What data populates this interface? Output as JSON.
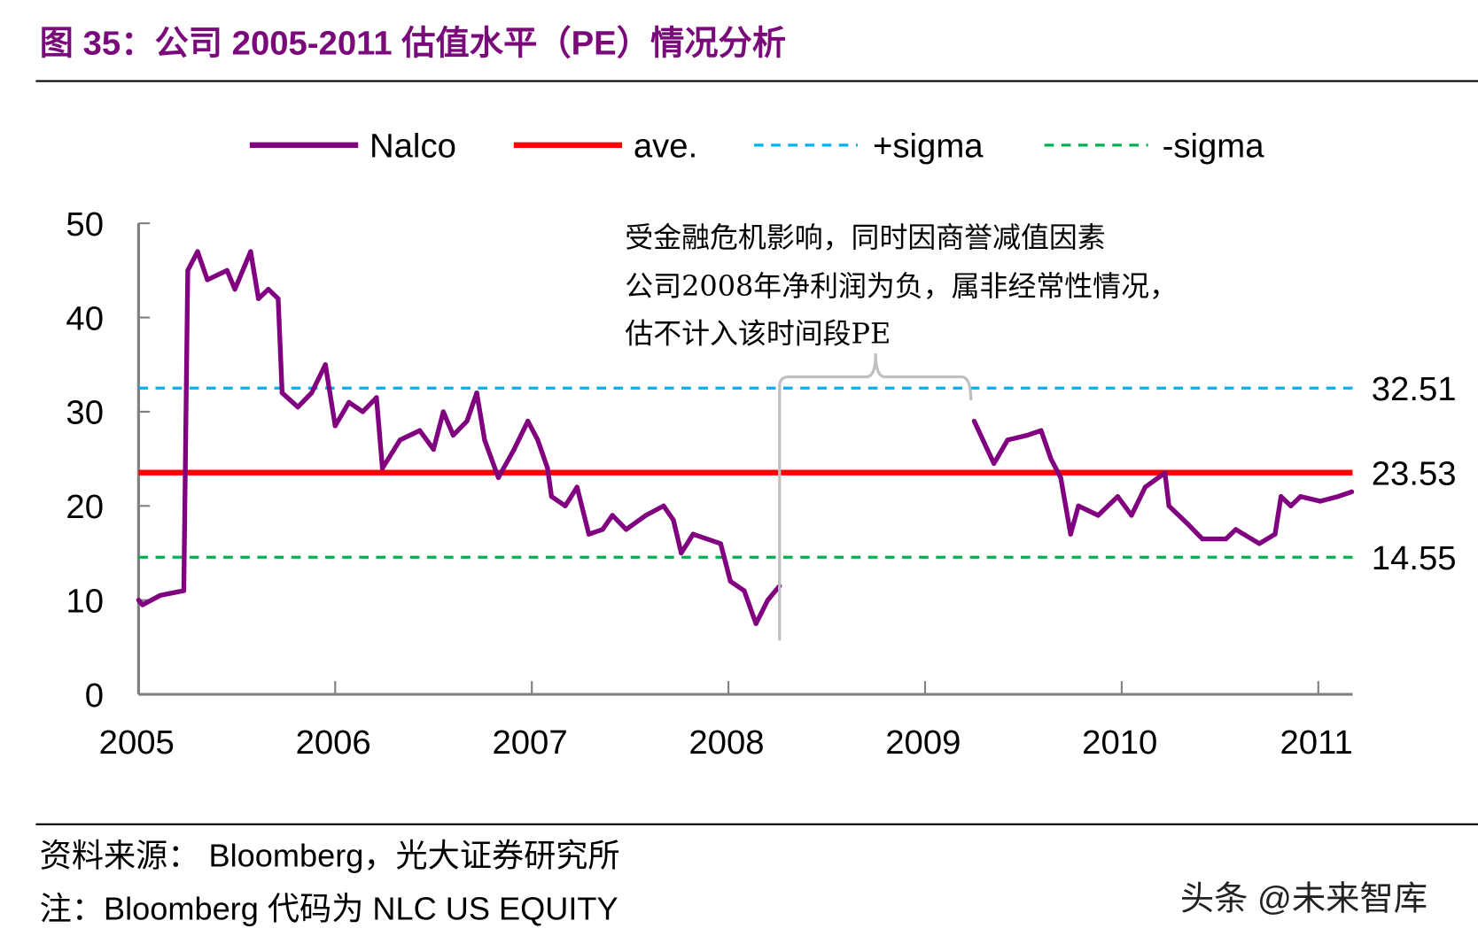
{
  "title": "图 35：公司 2005-2011 估值水平（PE）情况分析",
  "colors": {
    "title": "#7a0a7a",
    "nalco": "#800080",
    "ave": "#ff0000",
    "plus_sigma": "#00b0f0",
    "minus_sigma": "#00b050",
    "annotation": "#bfbfbf"
  },
  "annotation": [
    "受金融危机影响，同时因商誉减值因素",
    "公司2008年净利润为负，属非经常性情况，",
    "估不计入该时间段PE"
  ],
  "footer": {
    "source": "资料来源：  Bloomberg，光大证券研究所",
    "note": "注：Bloomberg 代码为 NLC US EQUITY",
    "watermark": "头条 @未来智库"
  },
  "chart_data": {
    "type": "line",
    "title": "",
    "xlabel": "",
    "ylabel": "",
    "xlim": [
      2005,
      2011.18
    ],
    "ylim": [
      0,
      50
    ],
    "x_ticks": [
      "2005",
      "2006",
      "2007",
      "2008",
      "2009",
      "2010",
      "2011"
    ],
    "y_ticks": [
      "0",
      "10",
      "20",
      "30",
      "40",
      "50"
    ],
    "grid": false,
    "legend": "top",
    "series": [
      {
        "name": "Nalco",
        "style": "solid",
        "segments": [
          [
            [
              2005.0,
              10
            ],
            [
              2005.02,
              9.5
            ],
            [
              2005.11,
              10.5
            ],
            [
              2005.23,
              11
            ],
            [
              2005.25,
              45
            ],
            [
              2005.3,
              47
            ],
            [
              2005.35,
              44
            ],
            [
              2005.45,
              45
            ],
            [
              2005.49,
              43
            ],
            [
              2005.57,
              47
            ],
            [
              2005.61,
              42
            ],
            [
              2005.66,
              43
            ],
            [
              2005.71,
              42
            ],
            [
              2005.73,
              32
            ],
            [
              2005.81,
              30.5
            ],
            [
              2005.88,
              32
            ],
            [
              2005.95,
              35
            ],
            [
              2006.0,
              28.5
            ],
            [
              2006.07,
              31
            ],
            [
              2006.14,
              30
            ],
            [
              2006.21,
              31.5
            ],
            [
              2006.24,
              24
            ],
            [
              2006.33,
              27
            ],
            [
              2006.43,
              28
            ],
            [
              2006.5,
              26
            ],
            [
              2006.55,
              30
            ],
            [
              2006.6,
              27.5
            ],
            [
              2006.67,
              29
            ],
            [
              2006.72,
              32
            ],
            [
              2006.76,
              27
            ],
            [
              2006.83,
              23
            ],
            [
              2006.91,
              26
            ],
            [
              2006.98,
              29
            ],
            [
              2007.03,
              27
            ],
            [
              2007.08,
              24
            ],
            [
              2007.1,
              21
            ],
            [
              2007.17,
              20
            ],
            [
              2007.23,
              22
            ],
            [
              2007.29,
              17
            ],
            [
              2007.36,
              17.5
            ],
            [
              2007.41,
              19
            ],
            [
              2007.48,
              17.5
            ],
            [
              2007.58,
              19
            ],
            [
              2007.67,
              20
            ],
            [
              2007.72,
              18.5
            ],
            [
              2007.76,
              15
            ],
            [
              2007.82,
              17
            ],
            [
              2007.96,
              16
            ],
            [
              2008.01,
              12
            ],
            [
              2008.08,
              11
            ],
            [
              2008.14,
              7.5
            ],
            [
              2008.2,
              10
            ],
            [
              2008.26,
              11.5
            ]
          ],
          [
            [
              2009.25,
              29
            ],
            [
              2009.35,
              24.5
            ],
            [
              2009.42,
              27
            ],
            [
              2009.52,
              27.5
            ],
            [
              2009.59,
              28
            ],
            [
              2009.64,
              25
            ],
            [
              2009.69,
              23
            ],
            [
              2009.74,
              17
            ],
            [
              2009.78,
              20
            ],
            [
              2009.88,
              19
            ],
            [
              2009.98,
              21
            ],
            [
              2010.05,
              19
            ],
            [
              2010.12,
              22
            ],
            [
              2010.22,
              23.5
            ],
            [
              2010.24,
              20
            ],
            [
              2010.34,
              18
            ],
            [
              2010.41,
              16.5
            ],
            [
              2010.53,
              16.5
            ],
            [
              2010.58,
              17.5
            ],
            [
              2010.7,
              16
            ],
            [
              2010.78,
              17
            ],
            [
              2010.81,
              21
            ],
            [
              2010.86,
              20
            ],
            [
              2010.91,
              21
            ],
            [
              2011.01,
              20.5
            ],
            [
              2011.1,
              21
            ],
            [
              2011.17,
              21.5
            ]
          ]
        ]
      },
      {
        "name": "ave.",
        "style": "solid",
        "value": 23.53,
        "label": "23.53"
      },
      {
        "name": "+sigma",
        "style": "dashed",
        "value": 32.51,
        "label": "32.51"
      },
      {
        "name": "-sigma",
        "style": "dashed",
        "value": 14.55,
        "label": "14.55"
      }
    ]
  }
}
